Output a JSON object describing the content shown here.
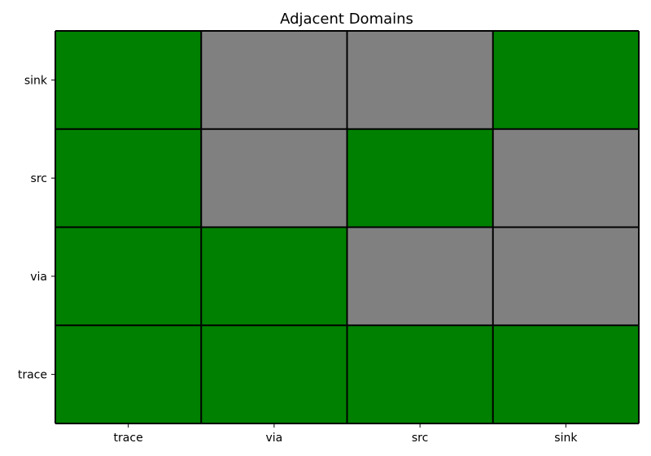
{
  "chart_data": {
    "type": "heatmap",
    "title": "Adjacent Domains",
    "xlabel": "",
    "ylabel": "",
    "x_categories": [
      "trace",
      "via",
      "src",
      "sink"
    ],
    "y_categories_top_to_bottom": [
      "sink",
      "src",
      "via",
      "trace"
    ],
    "matrix_top_to_bottom": [
      [
        1,
        0,
        0,
        1
      ],
      [
        1,
        0,
        1,
        0
      ],
      [
        1,
        1,
        0,
        0
      ],
      [
        1,
        1,
        1,
        1
      ]
    ],
    "colors": {
      "1": "#008000",
      "0": "#808080"
    },
    "grid": true,
    "legend": "none"
  }
}
